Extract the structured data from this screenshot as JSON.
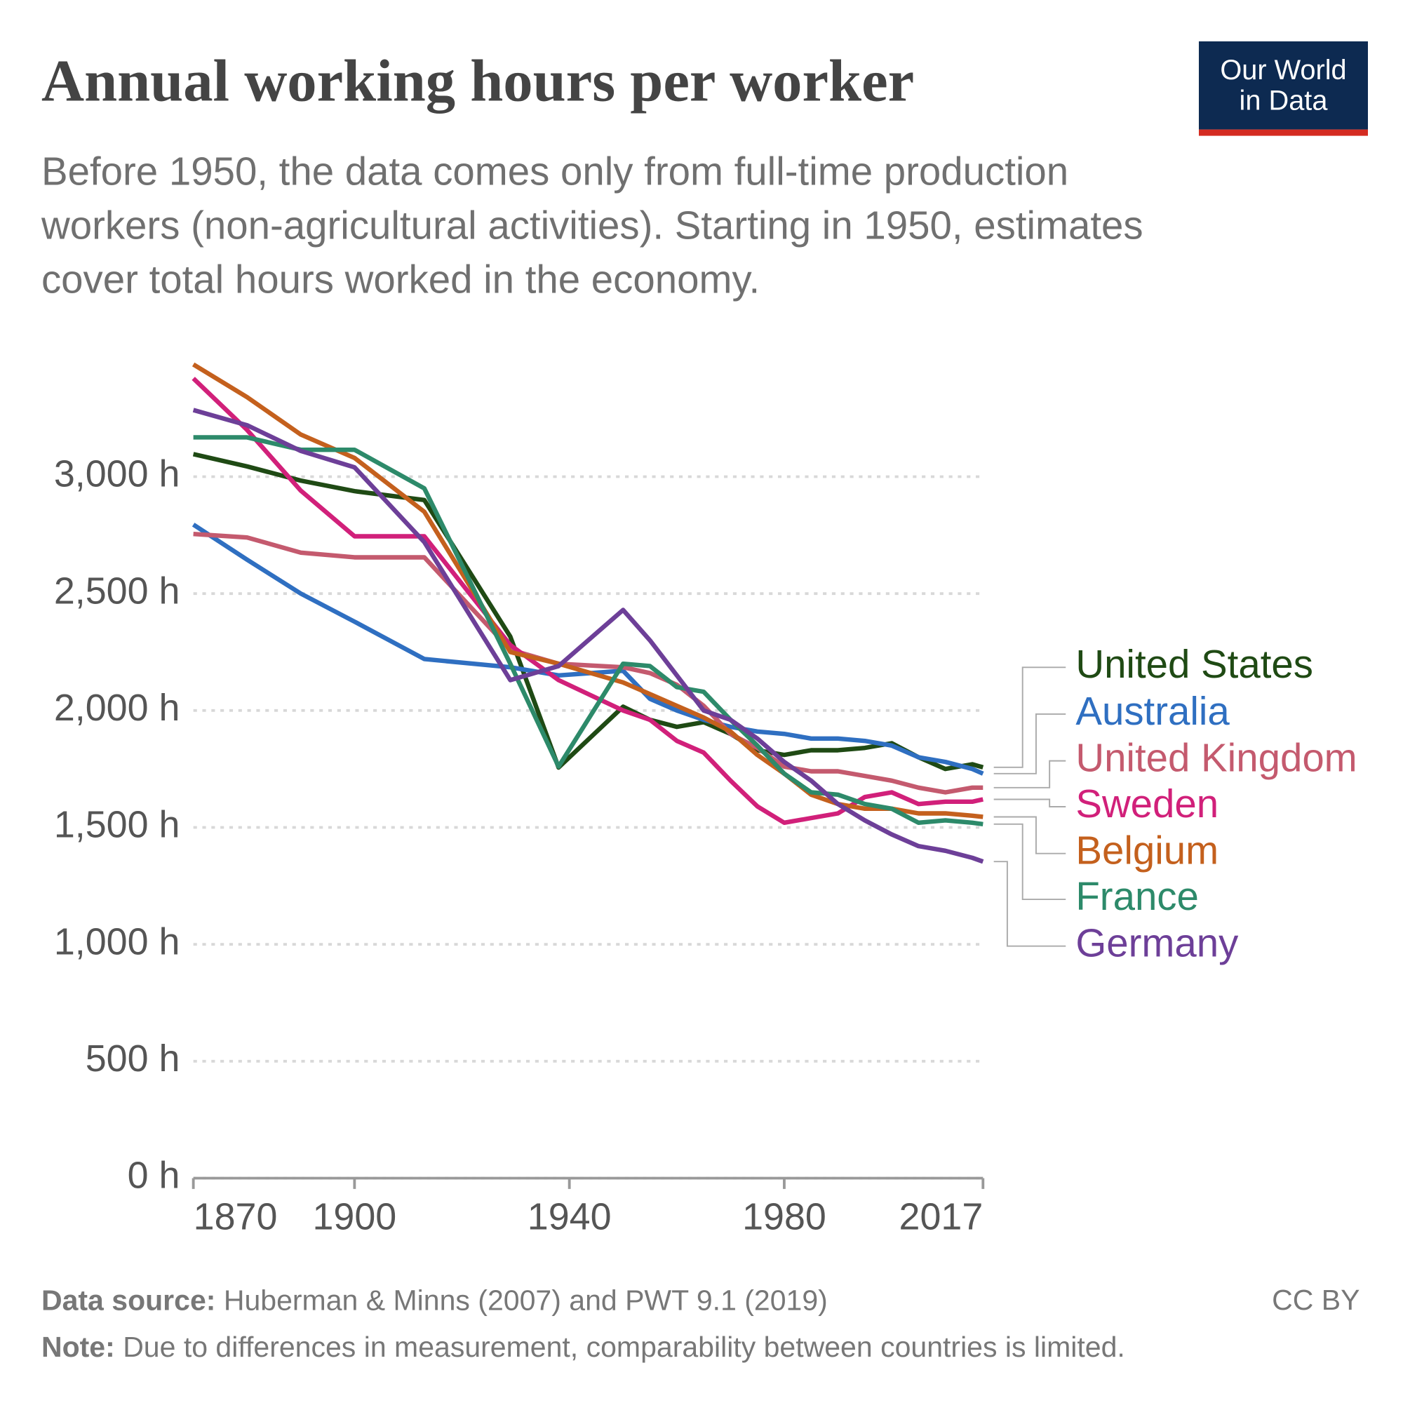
{
  "chart_data": {
    "type": "line",
    "title": "Annual working hours per worker",
    "subtitle": [
      "Before 1950, the data comes only from full-time production",
      "workers (non-agricultural activities). Starting in 1950, estimates",
      "cover total hours worked in the economy."
    ],
    "logo": [
      "Our World",
      "in Data"
    ],
    "source_label": "Data source:",
    "source": "Huberman & Minns (2007) and PWT 9.1 (2019)",
    "note_label": "Note:",
    "note": "Due to differences in measurement, comparability between countries is limited.",
    "license": "CC BY",
    "x": [
      1870,
      1880,
      1890,
      1900,
      1913,
      1929,
      1938,
      1950,
      1955,
      1960,
      1965,
      1970,
      1975,
      1980,
      1985,
      1990,
      1995,
      2000,
      2005,
      2010,
      2015,
      2017
    ],
    "xlim": [
      1870,
      2017
    ],
    "xticks": [
      1870,
      1900,
      1940,
      1980,
      2017
    ],
    "ylim": [
      0,
      3500
    ],
    "yticks": [
      {
        "value": 0,
        "label": "0 h"
      },
      {
        "value": 500,
        "label": "500 h"
      },
      {
        "value": 1000,
        "label": "1,000 h"
      },
      {
        "value": 1500,
        "label": "1,500 h"
      },
      {
        "value": 2000,
        "label": "2,000 h"
      },
      {
        "value": 2500,
        "label": "2,500 h"
      },
      {
        "value": 3000,
        "label": "3,000 h"
      }
    ],
    "grid": true,
    "series": [
      {
        "name": "United States",
        "color": "#1f4a14",
        "values": [
          3096,
          3044,
          2983,
          2938,
          2900,
          2316,
          1756,
          2016,
          1960,
          1930,
          1950,
          1900,
          1830,
          1810,
          1830,
          1830,
          1840,
          1860,
          1800,
          1750,
          1770,
          1757
        ]
      },
      {
        "name": "Australia",
        "color": "#2f6fc1",
        "values": [
          2795,
          2645,
          2500,
          2380,
          2220,
          2185,
          2150,
          2170,
          2050,
          2000,
          1960,
          1930,
          1910,
          1900,
          1880,
          1880,
          1870,
          1850,
          1800,
          1780,
          1750,
          1730
        ]
      },
      {
        "name": "United Kingdom",
        "color": "#c45a6e",
        "values": [
          2755,
          2740,
          2675,
          2655,
          2655,
          2260,
          2200,
          2185,
          2160,
          2110,
          2020,
          1900,
          1840,
          1760,
          1740,
          1740,
          1720,
          1700,
          1670,
          1650,
          1670,
          1670
        ]
      },
      {
        "name": "Sweden",
        "color": "#d1207a",
        "values": [
          3420,
          3200,
          2940,
          2745,
          2745,
          2280,
          2130,
          2000,
          1960,
          1870,
          1820,
          1700,
          1590,
          1520,
          1540,
          1560,
          1630,
          1650,
          1600,
          1610,
          1610,
          1620
        ]
      },
      {
        "name": "Belgium",
        "color": "#c4601d",
        "values": [
          3480,
          3340,
          3180,
          3080,
          2850,
          2250,
          2200,
          2120,
          2070,
          2020,
          1970,
          1910,
          1810,
          1730,
          1640,
          1600,
          1580,
          1580,
          1560,
          1560,
          1550,
          1545
        ]
      },
      {
        "name": "France",
        "color": "#2d8a6a",
        "values": [
          3168,
          3168,
          3115,
          3115,
          2950,
          2200,
          1760,
          2200,
          2190,
          2100,
          2080,
          1960,
          1850,
          1730,
          1650,
          1640,
          1600,
          1580,
          1520,
          1530,
          1520,
          1514
        ]
      },
      {
        "name": "Germany",
        "color": "#6d3f98",
        "values": [
          3285,
          3220,
          3110,
          3040,
          2720,
          2130,
          2190,
          2430,
          2300,
          2150,
          2000,
          1960,
          1880,
          1780,
          1700,
          1600,
          1530,
          1470,
          1420,
          1400,
          1370,
          1354
        ]
      }
    ]
  }
}
